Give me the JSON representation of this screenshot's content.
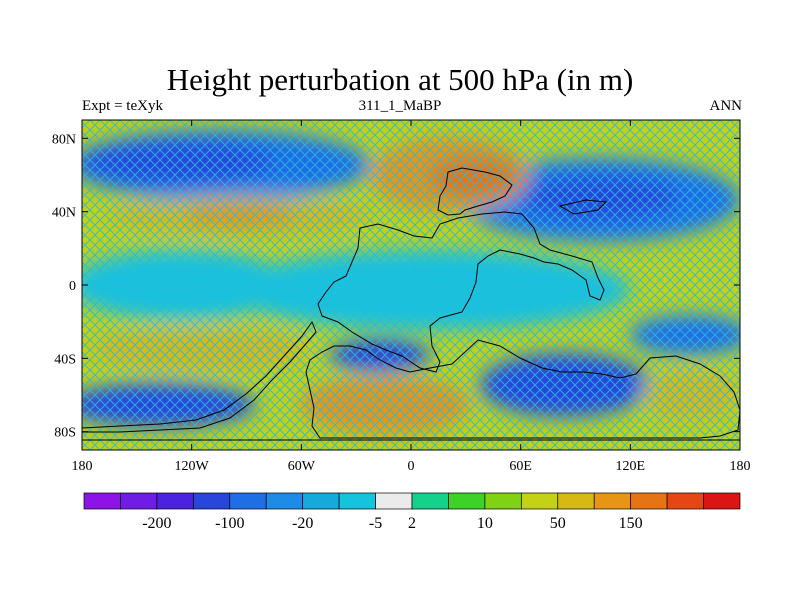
{
  "header": {
    "title": "Height perturbation at 500 hPa (in m)",
    "left": "Expt = teXyk",
    "center": "311_1_MaBP",
    "right": "ANN"
  },
  "axes": {
    "y_ticks": [
      {
        "value": 80,
        "label": "80N"
      },
      {
        "value": 40,
        "label": "40N"
      },
      {
        "value": 0,
        "label": "0"
      },
      {
        "value": -40,
        "label": "40S"
      },
      {
        "value": -80,
        "label": "80S"
      }
    ],
    "x_ticks": [
      {
        "value": -180,
        "label": "180"
      },
      {
        "value": -120,
        "label": "120W"
      },
      {
        "value": -60,
        "label": "60W"
      },
      {
        "value": 0,
        "label": "0"
      },
      {
        "value": 60,
        "label": "60E"
      },
      {
        "value": 120,
        "label": "120E"
      },
      {
        "value": 180,
        "label": "180"
      }
    ],
    "lon_range": [
      -180,
      180
    ],
    "lat_range": [
      -90,
      90
    ]
  },
  "colorbar": {
    "colors": [
      "#8c14e6",
      "#6e1ce6",
      "#4b22e0",
      "#2846dc",
      "#1e6ee6",
      "#1e8ce6",
      "#14aadc",
      "#14c3dc",
      "#ebebeb",
      "#14d28c",
      "#3cd228",
      "#82d214",
      "#c3d214",
      "#d7b914",
      "#e69614",
      "#e67314",
      "#e64614",
      "#dc1414"
    ],
    "labels": [
      {
        "after_box": 2,
        "text": "-200"
      },
      {
        "after_box": 4,
        "text": "-100"
      },
      {
        "after_box": 6,
        "text": "-20"
      },
      {
        "after_box": 8,
        "text": "-5"
      },
      {
        "after_box": 9,
        "text": "2"
      },
      {
        "after_box": 11,
        "text": "10"
      },
      {
        "after_box": 13,
        "text": "50"
      },
      {
        "after_box": 15,
        "text": "150"
      }
    ]
  },
  "colors": {
    "background_field": "#c3d214",
    "hatch": "#2ab8e0"
  }
}
